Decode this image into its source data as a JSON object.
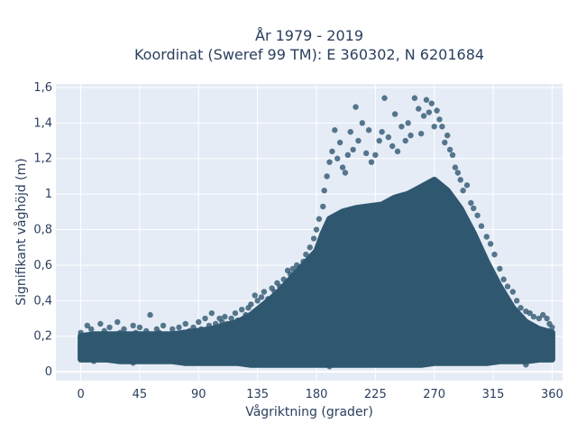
{
  "chart_data": {
    "type": "scatter",
    "title": "År 1979 - 2019",
    "subtitle": "Koordinat (Sweref 99 TM): E 360302, N 6201684",
    "xlabel": "Vågriktning (grader)",
    "ylabel": "Signifikant våghöjd (m)",
    "xlim": [
      -19,
      368
    ],
    "ylim": [
      -0.05,
      1.62
    ],
    "xticks": [
      0,
      45,
      90,
      135,
      180,
      225,
      270,
      315,
      360
    ],
    "xtick_labels": [
      "0",
      "45",
      "90",
      "135",
      "180",
      "225",
      "270",
      "315",
      "360"
    ],
    "yticks": [
      0,
      0.2,
      0.4,
      0.6,
      0.8,
      1.0,
      1.2,
      1.4,
      1.6
    ],
    "ytick_labels": [
      "0",
      "0,2",
      "0,4",
      "0,6",
      "0,8",
      "1",
      "1,2",
      "1,4",
      "1,6"
    ],
    "grid": true,
    "marker_color": "#2f5870",
    "plot_background": "#e5ecf6",
    "series": [
      {
        "points": [
          [
            0,
            0.07
          ],
          [
            0,
            0.22
          ],
          [
            2,
            0.19
          ],
          [
            5,
            0.26
          ],
          [
            8,
            0.24
          ],
          [
            12,
            0.21
          ],
          [
            15,
            0.27
          ],
          [
            18,
            0.23
          ],
          [
            20,
            0.07
          ],
          [
            22,
            0.25
          ],
          [
            25,
            0.2
          ],
          [
            28,
            0.28
          ],
          [
            30,
            0.22
          ],
          [
            33,
            0.24
          ],
          [
            36,
            0.2
          ],
          [
            40,
            0.26
          ],
          [
            42,
            0.22
          ],
          [
            45,
            0.25
          ],
          [
            48,
            0.21
          ],
          [
            50,
            0.23
          ],
          [
            53,
            0.32
          ],
          [
            55,
            0.2
          ],
          [
            58,
            0.24
          ],
          [
            60,
            0.22
          ],
          [
            63,
            0.26
          ],
          [
            66,
            0.21
          ],
          [
            70,
            0.24
          ],
          [
            72,
            0.2
          ],
          [
            75,
            0.25
          ],
          [
            78,
            0.22
          ],
          [
            80,
            0.27
          ],
          [
            83,
            0.23
          ],
          [
            86,
            0.25
          ],
          [
            90,
            0.28
          ],
          [
            92,
            0.24
          ],
          [
            95,
            0.3
          ],
          [
            98,
            0.26
          ],
          [
            100,
            0.33
          ],
          [
            103,
            0.27
          ],
          [
            106,
            0.3
          ],
          [
            108,
            0.28
          ],
          [
            110,
            0.31
          ],
          [
            112,
            0.27
          ],
          [
            115,
            0.3
          ],
          [
            118,
            0.33
          ],
          [
            120,
            0.29
          ],
          [
            123,
            0.35
          ],
          [
            126,
            0.32
          ],
          [
            128,
            0.36
          ],
          [
            130,
            0.38
          ],
          [
            133,
            0.43
          ],
          [
            135,
            0.4
          ],
          [
            138,
            0.42
          ],
          [
            140,
            0.45
          ],
          [
            143,
            0.41
          ],
          [
            146,
            0.47
          ],
          [
            148,
            0.45
          ],
          [
            150,
            0.5
          ],
          [
            152,
            0.48
          ],
          [
            155,
            0.52
          ],
          [
            158,
            0.57
          ],
          [
            160,
            0.55
          ],
          [
            162,
            0.58
          ],
          [
            165,
            0.6
          ],
          [
            168,
            0.59
          ],
          [
            170,
            0.62
          ],
          [
            172,
            0.66
          ],
          [
            175,
            0.7
          ],
          [
            178,
            0.75
          ],
          [
            180,
            0.8
          ],
          [
            182,
            0.86
          ],
          [
            185,
            0.93
          ],
          [
            186,
            1.02
          ],
          [
            188,
            1.1
          ],
          [
            190,
            1.18
          ],
          [
            192,
            1.24
          ],
          [
            194,
            1.36
          ],
          [
            196,
            1.2
          ],
          [
            198,
            1.29
          ],
          [
            200,
            1.15
          ],
          [
            202,
            1.12
          ],
          [
            204,
            1.22
          ],
          [
            206,
            1.35
          ],
          [
            208,
            1.25
          ],
          [
            210,
            1.49
          ],
          [
            212,
            1.3
          ],
          [
            215,
            1.4
          ],
          [
            218,
            1.23
          ],
          [
            220,
            1.36
          ],
          [
            222,
            1.18
          ],
          [
            225,
            1.22
          ],
          [
            228,
            1.3
          ],
          [
            230,
            1.35
          ],
          [
            232,
            1.54
          ],
          [
            235,
            1.32
          ],
          [
            238,
            1.27
          ],
          [
            240,
            1.45
          ],
          [
            242,
            1.24
          ],
          [
            245,
            1.38
          ],
          [
            248,
            1.3
          ],
          [
            250,
            1.4
          ],
          [
            252,
            1.33
          ],
          [
            255,
            1.54
          ],
          [
            258,
            1.48
          ],
          [
            260,
            1.34
          ],
          [
            262,
            1.44
          ],
          [
            264,
            1.53
          ],
          [
            266,
            1.46
          ],
          [
            268,
            1.51
          ],
          [
            270,
            1.38
          ],
          [
            272,
            1.47
          ],
          [
            274,
            1.42
          ],
          [
            276,
            1.38
          ],
          [
            278,
            1.29
          ],
          [
            280,
            1.33
          ],
          [
            282,
            1.25
          ],
          [
            284,
            1.22
          ],
          [
            286,
            1.15
          ],
          [
            288,
            1.12
          ],
          [
            290,
            1.08
          ],
          [
            292,
            1.02
          ],
          [
            295,
            1.05
          ],
          [
            298,
            0.95
          ],
          [
            300,
            0.92
          ],
          [
            303,
            0.88
          ],
          [
            306,
            0.82
          ],
          [
            310,
            0.76
          ],
          [
            313,
            0.72
          ],
          [
            316,
            0.66
          ],
          [
            320,
            0.58
          ],
          [
            323,
            0.52
          ],
          [
            326,
            0.48
          ],
          [
            330,
            0.45
          ],
          [
            333,
            0.4
          ],
          [
            336,
            0.36
          ],
          [
            340,
            0.34
          ],
          [
            343,
            0.33
          ],
          [
            346,
            0.31
          ],
          [
            350,
            0.3
          ],
          [
            353,
            0.32
          ],
          [
            356,
            0.3
          ],
          [
            358,
            0.27
          ],
          [
            360,
            0.25
          ],
          [
            360,
            0.08
          ],
          [
            340,
            0.04
          ],
          [
            300,
            0.05
          ],
          [
            260,
            0.06
          ],
          [
            220,
            0.04
          ],
          [
            190,
            0.03
          ],
          [
            160,
            0.04
          ],
          [
            120,
            0.05
          ],
          [
            80,
            0.05
          ],
          [
            40,
            0.05
          ],
          [
            10,
            0.06
          ]
        ],
        "dense_band": [
          [
            0,
            0.07,
            0.2
          ],
          [
            10,
            0.07,
            0.21
          ],
          [
            20,
            0.07,
            0.21
          ],
          [
            30,
            0.06,
            0.21
          ],
          [
            40,
            0.06,
            0.21
          ],
          [
            50,
            0.06,
            0.21
          ],
          [
            60,
            0.06,
            0.21
          ],
          [
            70,
            0.06,
            0.21
          ],
          [
            80,
            0.05,
            0.22
          ],
          [
            90,
            0.05,
            0.23
          ],
          [
            100,
            0.05,
            0.24
          ],
          [
            110,
            0.05,
            0.26
          ],
          [
            120,
            0.05,
            0.28
          ],
          [
            130,
            0.04,
            0.32
          ],
          [
            140,
            0.04,
            0.38
          ],
          [
            150,
            0.04,
            0.44
          ],
          [
            160,
            0.04,
            0.52
          ],
          [
            170,
            0.04,
            0.6
          ],
          [
            180,
            0.04,
            0.68
          ],
          [
            185,
            0.04,
            0.78
          ],
          [
            190,
            0.04,
            0.86
          ],
          [
            200,
            0.04,
            0.9
          ],
          [
            210,
            0.04,
            0.92
          ],
          [
            220,
            0.04,
            0.93
          ],
          [
            230,
            0.04,
            0.94
          ],
          [
            240,
            0.04,
            0.98
          ],
          [
            250,
            0.04,
            1.0
          ],
          [
            260,
            0.04,
            1.04
          ],
          [
            270,
            0.05,
            1.08
          ],
          [
            280,
            0.05,
            1.02
          ],
          [
            290,
            0.05,
            0.92
          ],
          [
            300,
            0.05,
            0.78
          ],
          [
            310,
            0.05,
            0.62
          ],
          [
            320,
            0.06,
            0.48
          ],
          [
            330,
            0.06,
            0.36
          ],
          [
            340,
            0.06,
            0.28
          ],
          [
            350,
            0.07,
            0.24
          ],
          [
            360,
            0.07,
            0.22
          ]
        ]
      }
    ]
  }
}
